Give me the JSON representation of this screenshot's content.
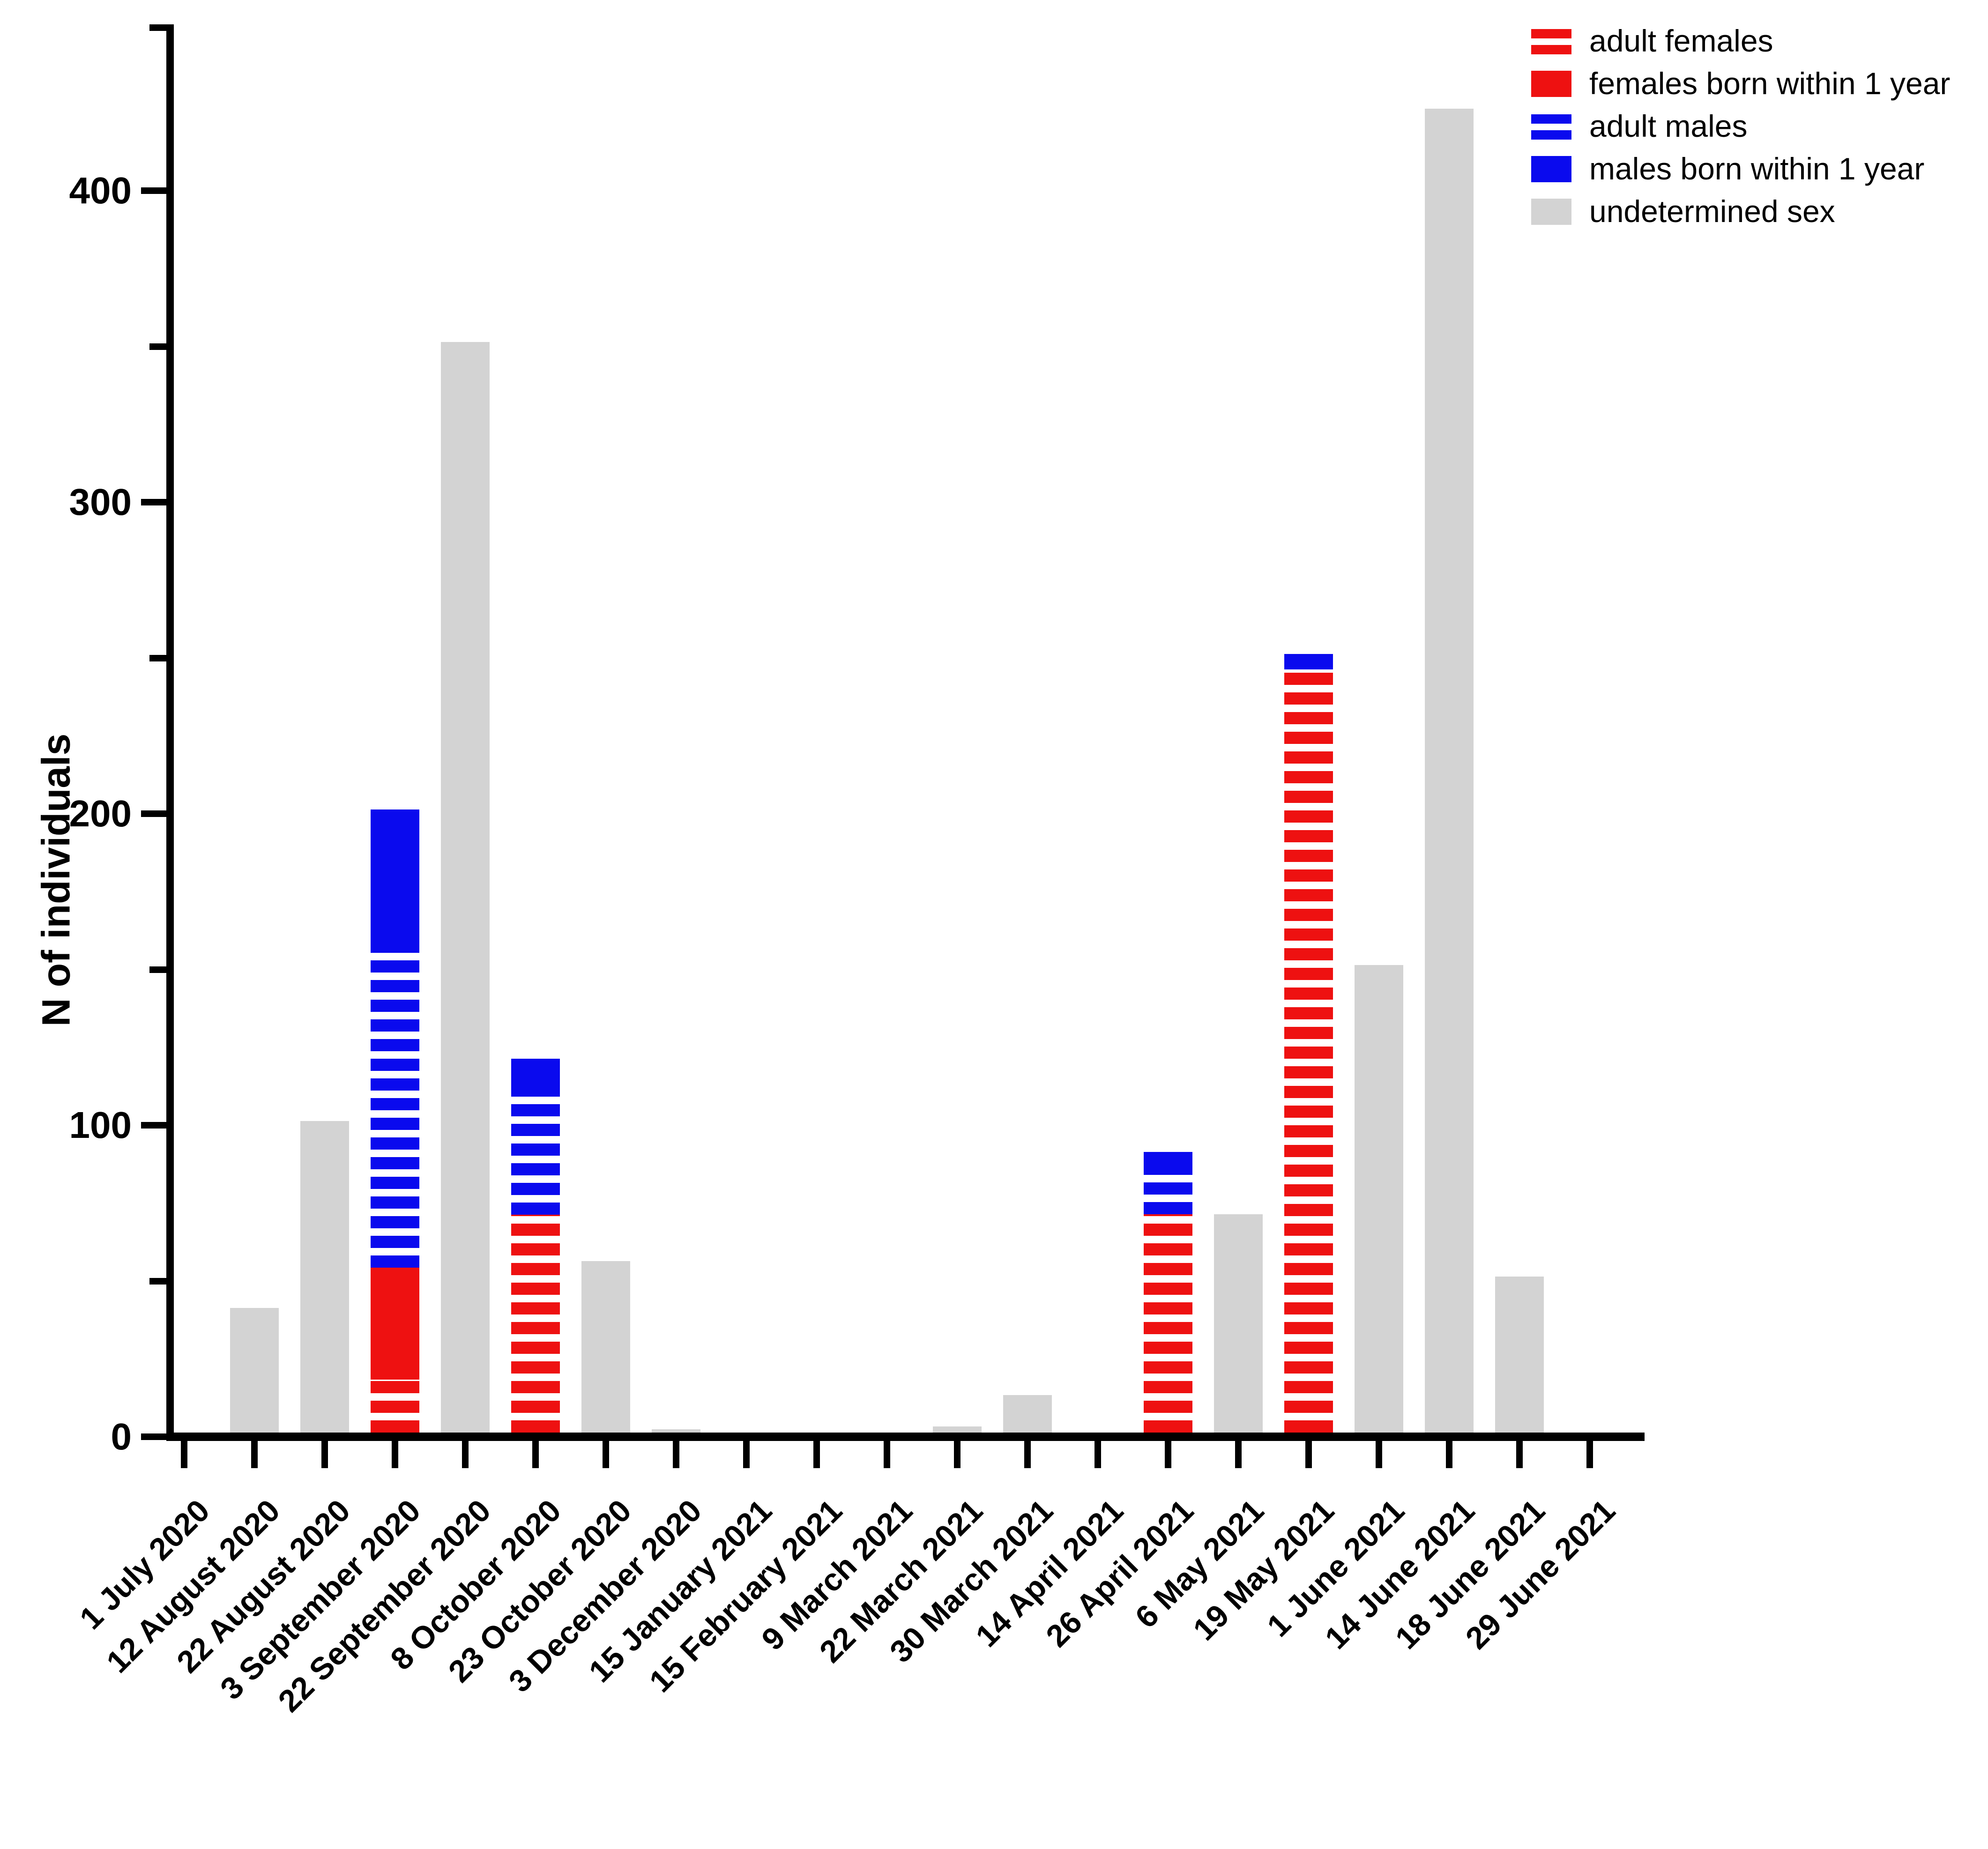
{
  "chart_data": {
    "type": "bar",
    "stacked": true,
    "title": "",
    "xlabel": "",
    "ylabel": "N of individuals",
    "ylim": [
      0,
      440
    ],
    "yticks_major": [
      0,
      100,
      200,
      300,
      400
    ],
    "yticks_minor": [
      50,
      150,
      250,
      350
    ],
    "grid": false,
    "legend_position": "top-right",
    "background_color": "#ffffff",
    "axis_color": "#000000",
    "categories": [
      "1 July 2020",
      "12 August 2020",
      "22 August 2020",
      "3 September 2020",
      "22 September 2020",
      "8 October 2020",
      "23 October 2020",
      "3 December 2020",
      "15 January 2021",
      "15 February 2021",
      "9 March 2021",
      "22 March 2021",
      "30 March 2021",
      "14 April 2021",
      "26 April 2021",
      "6 May 2021",
      "19 May 2021",
      "1 June 2021",
      "14 June 2021",
      "18 June 2021",
      "29 June 2021"
    ],
    "series": [
      {
        "name": "adult females",
        "style": "striped",
        "color": "#ee1111",
        "values": [
          0,
          0,
          0,
          17,
          0,
          70,
          0,
          0,
          0,
          0,
          0,
          0,
          0,
          0,
          70,
          0,
          245,
          0,
          0,
          0,
          0
        ]
      },
      {
        "name": "females born within 1 year",
        "style": "solid",
        "color": "#ee1111",
        "values": [
          0,
          0,
          0,
          36,
          0,
          0,
          0,
          0,
          0,
          0,
          0,
          0,
          0,
          0,
          0,
          0,
          0,
          0,
          0,
          0,
          0
        ]
      },
      {
        "name": "adult males",
        "style": "striped",
        "color": "#0a0aee",
        "values": [
          0,
          0,
          0,
          103,
          0,
          40,
          0,
          0,
          0,
          0,
          0,
          0,
          0,
          0,
          15,
          0,
          0,
          0,
          0,
          0,
          0
        ]
      },
      {
        "name": "males born within 1 year",
        "style": "solid",
        "color": "#0a0aee",
        "values": [
          0,
          0,
          0,
          44,
          0,
          10,
          0,
          0,
          0,
          0,
          0,
          0,
          0,
          0,
          5,
          0,
          5,
          0,
          0,
          0,
          0
        ]
      },
      {
        "name": "undetermined sex",
        "style": "solid",
        "color": "#d3d3d3",
        "values": [
          0,
          40,
          100,
          0,
          350,
          0,
          55,
          1,
          0,
          0,
          0,
          2,
          12,
          0,
          0,
          70,
          0,
          150,
          425,
          50,
          0
        ]
      }
    ]
  }
}
